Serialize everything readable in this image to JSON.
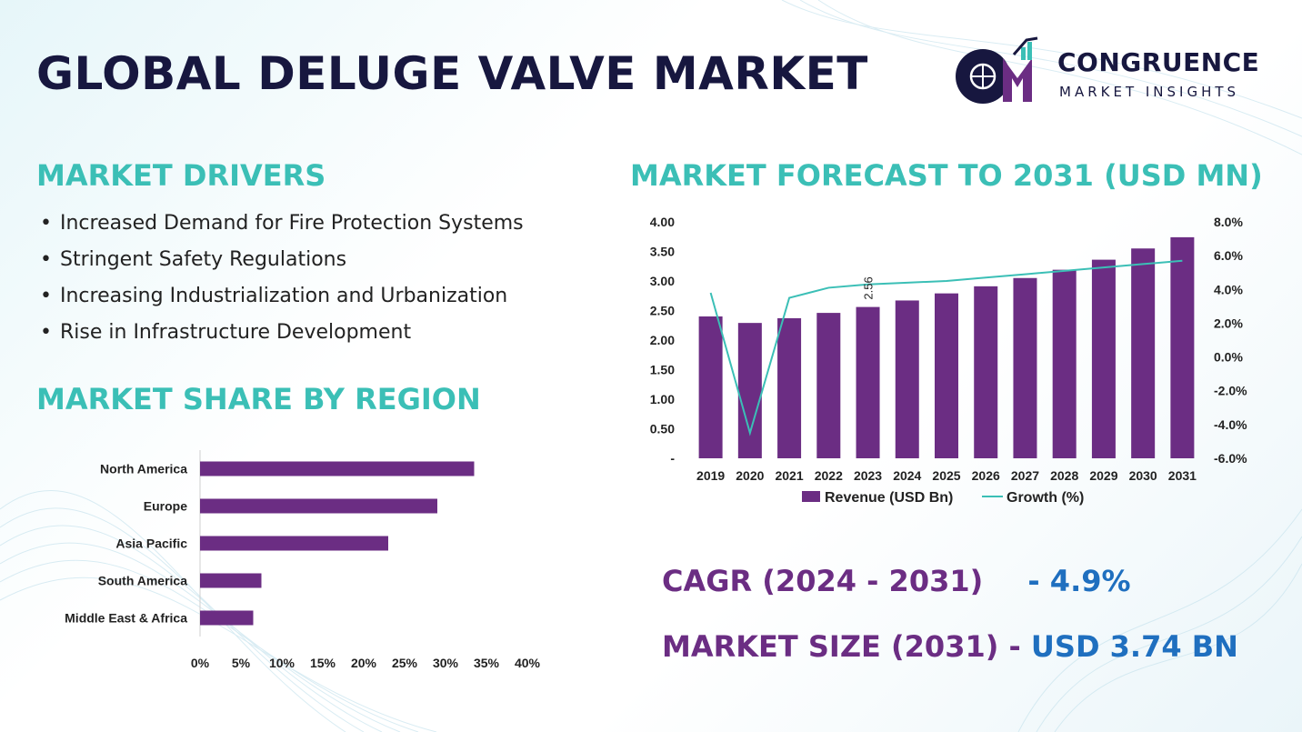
{
  "title": "GLOBAL DELUGE VALVE MARKET",
  "logo": {
    "name": "CONGRUENCE",
    "tagline": "MARKET INSIGHTS"
  },
  "sections": {
    "drivers_heading": "MARKET DRIVERS",
    "share_heading": "MARKET SHARE BY REGION",
    "forecast_heading": "MARKET FORECAST TO 2031 (USD MN)"
  },
  "drivers": [
    "Increased Demand for Fire Protection Systems",
    "Stringent Safety Regulations",
    "Increasing Industrialization and Urbanization",
    "Rise in Infrastructure Development"
  ],
  "kpis": {
    "cagr_label": "CAGR (2024 - 2031)",
    "cagr_value": "- 4.9%",
    "size_label": "MARKET SIZE (2031)",
    "size_sep": "-",
    "size_value": "USD 3.74 BN"
  },
  "colors": {
    "bar": "#6b2d83",
    "line": "#3bbfb6",
    "heading": "#3bbfb6",
    "accent_blue": "#1f6fbf",
    "title": "#17173f"
  },
  "chart_data": [
    {
      "type": "bar",
      "orientation": "horizontal",
      "categories": [
        "North America",
        "Europe",
        "Asia Pacific",
        "South America",
        "Middle East & Africa"
      ],
      "values": [
        33.5,
        29,
        23,
        7.5,
        6.5
      ],
      "xlim": [
        0,
        40
      ],
      "xticks": [
        "0%",
        "5%",
        "10%",
        "15%",
        "20%",
        "25%",
        "30%",
        "35%",
        "40%"
      ]
    },
    {
      "type": "bar",
      "x": [
        "2019",
        "2020",
        "2021",
        "2022",
        "2023",
        "2024",
        "2025",
        "2026",
        "2027",
        "2028",
        "2029",
        "2030",
        "2031"
      ],
      "series": [
        {
          "name": "Revenue (USD Bn)",
          "type": "bar",
          "axis": "left",
          "values": [
            2.4,
            2.29,
            2.37,
            2.46,
            2.56,
            2.67,
            2.79,
            2.91,
            3.05,
            3.19,
            3.36,
            3.55,
            3.74
          ]
        },
        {
          "name": "Growth (%)",
          "type": "line",
          "axis": "right",
          "values": [
            3.8,
            -4.5,
            3.5,
            4.1,
            4.3,
            4.4,
            4.5,
            4.7,
            4.9,
            5.1,
            5.3,
            5.5,
            5.7
          ]
        }
      ],
      "annotation": {
        "index": 4,
        "text": "2.56"
      },
      "ylim_left": [
        0,
        4
      ],
      "yticks_left": [
        "-",
        "0.50",
        "1.00",
        "1.50",
        "2.00",
        "2.50",
        "3.00",
        "3.50",
        "4.00"
      ],
      "ylim_right": [
        -6,
        8
      ],
      "yticks_right": [
        "-6.0%",
        "-4.0%",
        "-2.0%",
        "0.0%",
        "2.0%",
        "4.0%",
        "6.0%",
        "8.0%"
      ],
      "legend_position": "bottom"
    }
  ]
}
